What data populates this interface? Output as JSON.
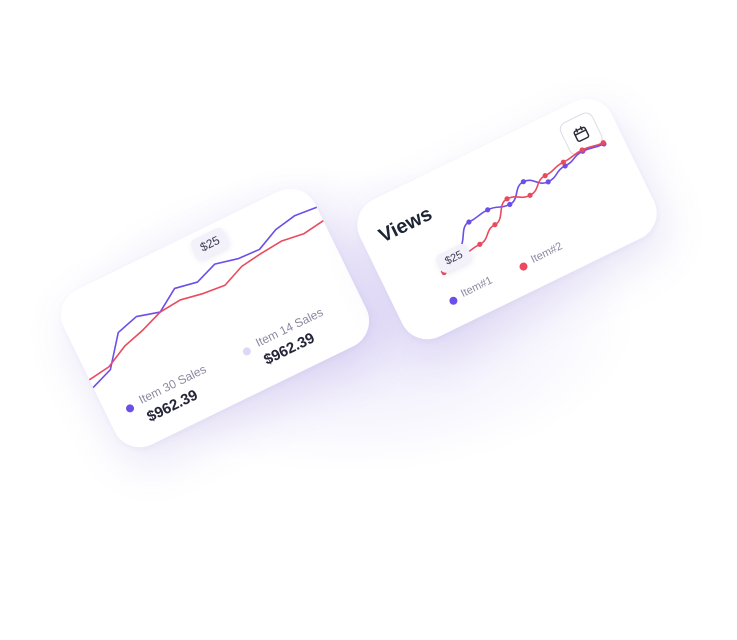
{
  "chart_data": [
    {
      "type": "line",
      "title": "",
      "tooltip": "$25",
      "x": [
        0,
        1,
        2,
        3,
        4,
        5,
        6,
        7,
        8,
        9,
        10,
        11,
        12
      ],
      "series": [
        {
          "name": "Item 30 Sales",
          "color": "#6c4ee8",
          "values": [
            14,
            22,
            50,
            56,
            50,
            64,
            60,
            68,
            63,
            62,
            72,
            76,
            74
          ]
        },
        {
          "name": "Item 14 Sales",
          "color": "#ea4a5e",
          "values": [
            22,
            25,
            36,
            42,
            50,
            52,
            48,
            46,
            55,
            58,
            60,
            57,
            60
          ]
        }
      ],
      "ylim": [
        0,
        90
      ],
      "grid": false
    },
    {
      "type": "line",
      "title": "Views",
      "tooltip": "$25",
      "x": [
        0,
        1,
        2,
        3,
        4,
        5,
        6,
        7,
        8,
        9
      ],
      "series": [
        {
          "name": "Item#1",
          "color": "#6c4ee8",
          "values": [
            10,
            30,
            58,
            62,
            55,
            76,
            60,
            70,
            78,
            74
          ]
        },
        {
          "name": "Item#2",
          "color": "#ea4a5e",
          "values": [
            8,
            18,
            22,
            38,
            64,
            54,
            70,
            76,
            80,
            76
          ]
        }
      ],
      "ylim": [
        0,
        90
      ],
      "grid": false
    }
  ],
  "sales_card": {
    "legend": [
      {
        "label": "Item 30 Sales",
        "value": "$962.39",
        "color": "#6c4ee8"
      },
      {
        "label": "Item 14 Sales",
        "value": "$962.39",
        "color": "#dcd8f6"
      }
    ]
  },
  "views_card": {
    "title": "Views",
    "calendar_icon": "calendar-icon",
    "legend": [
      {
        "label": "Item#1",
        "color": "#6c4ee8"
      },
      {
        "label": "Item#2",
        "color": "#ea4a5e"
      }
    ]
  }
}
